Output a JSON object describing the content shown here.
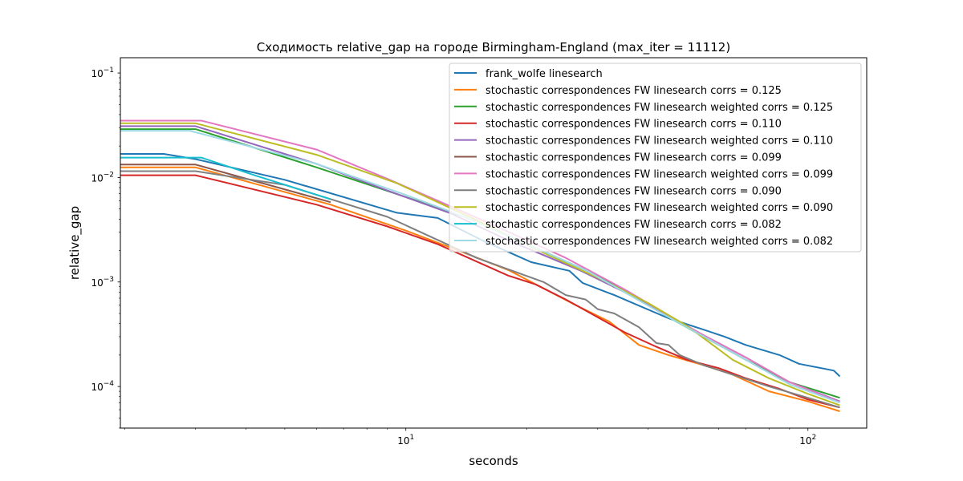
{
  "chart_data": {
    "type": "line",
    "title": "Сходимость relative_gap на городе Birmingham-England  (max_iter = 11112)",
    "xlabel": "seconds",
    "ylabel": "relative_gap",
    "xscale": "log",
    "yscale": "log",
    "xlim": [
      1.95,
      140
    ],
    "ylim": [
      4e-05,
      0.14
    ],
    "xticks": [
      {
        "base": "10",
        "exp": "1",
        "value": 10
      },
      {
        "base": "10",
        "exp": "2",
        "value": 100
      }
    ],
    "yticks": [
      {
        "base": "10",
        "exp": "−4",
        "value": 0.0001
      },
      {
        "base": "10",
        "exp": "−3",
        "value": 0.001
      },
      {
        "base": "10",
        "exp": "−2",
        "value": 0.01
      },
      {
        "base": "10",
        "exp": "−1",
        "value": 0.1
      }
    ],
    "grid": false,
    "legend_position": "top-right",
    "series": [
      {
        "name": "frank_wolfe linesearch",
        "color": "#1f77b4",
        "x": [
          1.95,
          2.5,
          3.0,
          5.0,
          9.5,
          12.0,
          15.5,
          20.5,
          25.5,
          27.5,
          33.0,
          37.0,
          45.0,
          55.0,
          62.0,
          70.0,
          85.0,
          95.0,
          116.0,
          120.0
        ],
        "y": [
          0.0168,
          0.0168,
          0.015,
          0.0095,
          0.0046,
          0.0041,
          0.0025,
          0.00155,
          0.00128,
          0.00098,
          0.00075,
          0.00062,
          0.00045,
          0.00035,
          0.0003,
          0.00025,
          0.0002,
          0.000165,
          0.000142,
          0.000125
        ]
      },
      {
        "name": "stochastic correspondences FW linesearch corrs = 0.125",
        "color": "#ff7f0e",
        "x": [
          1.95,
          3.0,
          6.5,
          10.0,
          14.0,
          18.0,
          26.0,
          32.0,
          38.0,
          45.0,
          55.0,
          65.0,
          80.0,
          100.0,
          120.0
        ],
        "y": [
          0.0125,
          0.0125,
          0.0055,
          0.0031,
          0.0019,
          0.0013,
          0.00062,
          0.00042,
          0.00025,
          0.0002,
          0.00016,
          0.00013,
          9e-05,
          7.2e-05,
          5.8e-05
        ]
      },
      {
        "name": "stochastic correspondences FW linesearch weighted corrs = 0.125",
        "color": "#2ca02c",
        "x": [
          1.95,
          3.0,
          6.0,
          10.0,
          14.0,
          20.0,
          28.0,
          35.0,
          45.0,
          55.0,
          70.0,
          90.0,
          120.0
        ],
        "y": [
          0.029,
          0.029,
          0.0125,
          0.0065,
          0.0042,
          0.0023,
          0.0013,
          0.00082,
          0.00046,
          0.0003,
          0.00018,
          0.00011,
          7.8e-05
        ]
      },
      {
        "name": "stochastic correspondences FW linesearch corrs = 0.110",
        "color": "#d62728",
        "x": [
          1.95,
          3.0,
          6.0,
          9.0,
          12.0,
          18.0,
          21.0,
          25.0,
          30.0,
          35.0,
          42.0,
          50.0,
          60.0,
          70.0,
          85.0,
          100.0,
          120.0
        ],
        "y": [
          0.0105,
          0.0105,
          0.0055,
          0.0034,
          0.0023,
          0.00115,
          0.00095,
          0.00068,
          0.00046,
          0.00033,
          0.00024,
          0.00018,
          0.00015,
          0.00012,
          9.5e-05,
          7.5e-05,
          6.3e-05
        ]
      },
      {
        "name": "stochastic correspondences FW linesearch weighted corrs = 0.110",
        "color": "#9467bd",
        "x": [
          1.95,
          3.0,
          6.0,
          9.0,
          13.0,
          18.0,
          27.0,
          35.0,
          45.0,
          55.0,
          70.0,
          90.0,
          120.0
        ],
        "y": [
          0.031,
          0.031,
          0.0135,
          0.0075,
          0.0045,
          0.0025,
          0.0013,
          0.0008,
          0.00047,
          0.00031,
          0.00019,
          0.00011,
          7.2e-05
        ]
      },
      {
        "name": "stochastic correspondences FW linesearch corrs = 0.099",
        "color": "#8c564b",
        "x": [
          1.95,
          3.0,
          6.5
        ],
        "y": [
          0.0133,
          0.0133,
          0.0058
        ]
      },
      {
        "name": "stochastic correspondences FW linesearch weighted corrs = 0.099",
        "color": "#e377c2",
        "x": [
          1.95,
          3.1,
          6.0,
          9.0,
          12.0,
          16.0,
          25.0,
          35.0,
          45.0,
          55.0,
          70.0,
          90.0,
          120.0
        ],
        "y": [
          0.035,
          0.035,
          0.0185,
          0.0097,
          0.006,
          0.0037,
          0.0017,
          0.00085,
          0.00048,
          0.00031,
          0.00019,
          0.00011,
          7.1e-05
        ]
      },
      {
        "name": "stochastic correspondences FW linesearch corrs = 0.090",
        "color": "#7f7f7f",
        "x": [
          1.95,
          3.0,
          5.0,
          9.0,
          15.0,
          22.0,
          25.0,
          28.0,
          30.0,
          33.0,
          38.0,
          42.0,
          45.0,
          48.0,
          55.0,
          65.0,
          80.0,
          100.0,
          120.0
        ],
        "y": [
          0.0115,
          0.0115,
          0.0085,
          0.0042,
          0.0017,
          0.001,
          0.00075,
          0.00068,
          0.00055,
          0.0005,
          0.00037,
          0.00026,
          0.00025,
          0.0002,
          0.00016,
          0.00013,
          0.0001,
          7.8e-05,
          6.3e-05
        ]
      },
      {
        "name": "stochastic correspondences FW linesearch weighted corrs = 0.090",
        "color": "#bcbd22",
        "x": [
          1.95,
          3.0,
          6.0,
          9.5,
          15.0,
          22.0,
          30.0,
          40.0,
          50.0,
          58.0,
          65.0,
          80.0,
          100.0,
          120.0
        ],
        "y": [
          0.033,
          0.033,
          0.0165,
          0.0088,
          0.0039,
          0.0019,
          0.0011,
          0.00063,
          0.00038,
          0.00025,
          0.00018,
          0.00012,
          8.5e-05,
          6.6e-05
        ]
      },
      {
        "name": "stochastic correspondences FW linesearch corrs = 0.082",
        "color": "#17becf",
        "x": [
          1.95,
          3.1,
          4.2,
          6.5
        ],
        "y": [
          0.0155,
          0.0155,
          0.0105,
          0.0062
        ]
      },
      {
        "name": "stochastic correspondences FW linesearch weighted corrs = 0.082",
        "color": "#9edae5",
        "x": [
          1.95,
          2.9,
          6.0,
          10.0,
          14.0,
          20.0,
          28.0,
          36.0,
          46.0,
          56.0,
          70.0,
          90.0,
          120.0
        ],
        "y": [
          0.028,
          0.028,
          0.0135,
          0.0068,
          0.0042,
          0.0023,
          0.0013,
          0.00075,
          0.00044,
          0.00029,
          0.00018,
          0.000105,
          7e-05
        ]
      }
    ]
  }
}
